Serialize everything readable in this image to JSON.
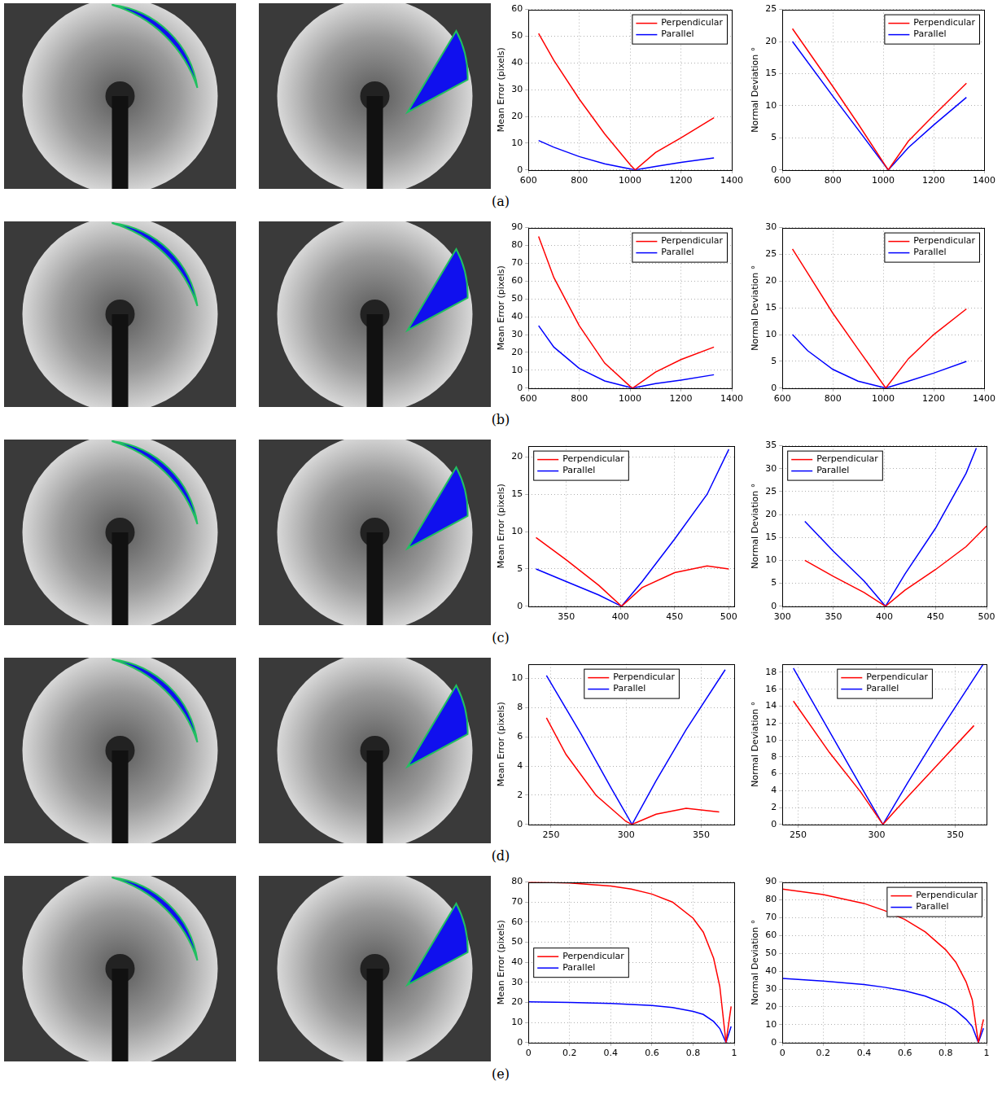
{
  "panel_labels": [
    "(a)",
    "(b)",
    "(c)",
    "(d)",
    "(e)"
  ],
  "chart_data": [
    {
      "type": "line",
      "y_label": "Mean Error (pixels)",
      "xlim": [
        600,
        1400
      ],
      "xticks": [
        600,
        800,
        1000,
        1200,
        1400
      ],
      "ylim": [
        0,
        60
      ],
      "yticks": [
        0,
        10,
        20,
        30,
        40,
        50,
        60
      ],
      "grid": true,
      "legend": "upper right",
      "series": [
        {
          "name": "Perpendicular",
          "color": "#ff0000",
          "x": [
            640,
            700,
            800,
            900,
            1000,
            1020,
            1100,
            1200,
            1330
          ],
          "values": [
            51,
            41,
            26.5,
            13.5,
            2,
            0,
            6.5,
            12,
            19.5
          ]
        },
        {
          "name": "Parallel",
          "color": "#0000ff",
          "x": [
            640,
            700,
            800,
            900,
            1020,
            1100,
            1200,
            1330
          ],
          "values": [
            11,
            8.5,
            5,
            2.3,
            0,
            1.3,
            2.8,
            4.5
          ]
        }
      ]
    },
    {
      "type": "line",
      "y_label": "Normal Deviation °",
      "xlim": [
        600,
        1400
      ],
      "xticks": [
        600,
        800,
        1000,
        1200,
        1400
      ],
      "ylim": [
        0,
        25
      ],
      "yticks": [
        0,
        5,
        10,
        15,
        20,
        25
      ],
      "grid": true,
      "legend": "upper right",
      "series": [
        {
          "name": "Perpendicular",
          "color": "#ff0000",
          "x": [
            640,
            800,
            900,
            1020,
            1100,
            1200,
            1330
          ],
          "values": [
            22,
            13,
            7.2,
            0,
            4.5,
            8.5,
            13.5
          ]
        },
        {
          "name": "Parallel",
          "color": "#0000ff",
          "x": [
            640,
            800,
            900,
            1020,
            1100,
            1200,
            1330
          ],
          "values": [
            20,
            11.5,
            6.3,
            0,
            3.5,
            7,
            11.3
          ]
        }
      ]
    },
    {
      "type": "line",
      "y_label": "Mean Error (pixels)",
      "xlim": [
        600,
        1400
      ],
      "xticks": [
        600,
        800,
        1000,
        1200,
        1400
      ],
      "ylim": [
        0,
        90
      ],
      "yticks": [
        0,
        10,
        20,
        30,
        40,
        50,
        60,
        70,
        80,
        90
      ],
      "grid": true,
      "legend": "upper right",
      "series": [
        {
          "name": "Perpendicular",
          "color": "#ff0000",
          "x": [
            640,
            700,
            800,
            900,
            1000,
            1010,
            1100,
            1200,
            1330
          ],
          "values": [
            85,
            62,
            35,
            14,
            1,
            0,
            9,
            16,
            23
          ]
        },
        {
          "name": "Parallel",
          "color": "#0000ff",
          "x": [
            640,
            700,
            800,
            900,
            1010,
            1100,
            1200,
            1330
          ],
          "values": [
            35,
            23,
            11,
            4,
            0,
            2.5,
            4.5,
            7.5
          ]
        }
      ]
    },
    {
      "type": "line",
      "y_label": "Normal Deviation °",
      "xlim": [
        600,
        1400
      ],
      "xticks": [
        600,
        800,
        1000,
        1200,
        1400
      ],
      "ylim": [
        0,
        30
      ],
      "yticks": [
        0,
        5,
        10,
        15,
        20,
        25,
        30
      ],
      "grid": true,
      "legend": "upper right",
      "series": [
        {
          "name": "Perpendicular",
          "color": "#ff0000",
          "x": [
            640,
            700,
            800,
            900,
            1010,
            1100,
            1200,
            1330
          ],
          "values": [
            26,
            21.5,
            14,
            7.3,
            0,
            5.5,
            10,
            14.8
          ]
        },
        {
          "name": "Parallel",
          "color": "#0000ff",
          "x": [
            640,
            700,
            800,
            900,
            1010,
            1100,
            1200,
            1330
          ],
          "values": [
            10,
            7,
            3.5,
            1.3,
            0,
            1.3,
            2.8,
            5
          ]
        }
      ]
    },
    {
      "type": "line",
      "y_label": "Mean Error (pixels)",
      "xlim": [
        315,
        505
      ],
      "xticks": [
        350,
        400,
        450,
        500
      ],
      "ylim": [
        0,
        21.5
      ],
      "yticks": [
        0,
        5,
        10,
        15,
        20
      ],
      "grid": true,
      "legend": "upper left",
      "series": [
        {
          "name": "Perpendicular",
          "color": "#ff0000",
          "x": [
            322,
            350,
            380,
            401,
            420,
            450,
            480,
            500
          ],
          "values": [
            9.2,
            6.2,
            2.8,
            0,
            2.5,
            4.5,
            5.4,
            5
          ]
        },
        {
          "name": "Parallel",
          "color": "#0000ff",
          "x": [
            322,
            350,
            380,
            401,
            420,
            450,
            480,
            500
          ],
          "values": [
            5,
            3.3,
            1.5,
            0,
            3.3,
            9,
            15,
            21
          ]
        }
      ]
    },
    {
      "type": "line",
      "y_label": "Normal Deviation °",
      "xlim": [
        300,
        500
      ],
      "xticks": [
        300,
        350,
        400,
        450,
        500
      ],
      "ylim": [
        0,
        35
      ],
      "yticks": [
        0,
        5,
        10,
        15,
        20,
        25,
        30,
        35
      ],
      "grid": true,
      "legend": "upper left",
      "series": [
        {
          "name": "Perpendicular",
          "color": "#ff0000",
          "x": [
            322,
            350,
            380,
            401,
            420,
            450,
            480,
            500
          ],
          "values": [
            10,
            6.5,
            3,
            0,
            3.5,
            8,
            13,
            17.5
          ]
        },
        {
          "name": "Parallel",
          "color": "#0000ff",
          "x": [
            322,
            350,
            380,
            401,
            420,
            450,
            480,
            490
          ],
          "values": [
            18.5,
            12,
            5.5,
            0,
            7,
            17,
            29,
            34.5
          ]
        }
      ]
    },
    {
      "type": "line",
      "y_label": "Mean Error (pixels)",
      "xlim": [
        235,
        372
      ],
      "xticks": [
        250,
        300,
        350
      ],
      "ylim": [
        0,
        11
      ],
      "yticks": [
        0,
        2,
        4,
        6,
        8,
        10
      ],
      "grid": true,
      "legend": "upper center",
      "series": [
        {
          "name": "Perpendicular",
          "color": "#ff0000",
          "x": [
            247,
            260,
            280,
            300,
            304,
            320,
            340,
            362
          ],
          "values": [
            7.3,
            4.8,
            2,
            0.2,
            0,
            0.7,
            1.1,
            0.85
          ]
        },
        {
          "name": "Parallel",
          "color": "#0000ff",
          "x": [
            247,
            270,
            290,
            304,
            320,
            340,
            366
          ],
          "values": [
            10.2,
            6.2,
            2.5,
            0,
            3,
            6.5,
            10.6
          ]
        }
      ]
    },
    {
      "type": "line",
      "y_label": "Normal Deviation °",
      "xlim": [
        240,
        370
      ],
      "xticks": [
        250,
        300,
        350
      ],
      "ylim": [
        0,
        19
      ],
      "yticks": [
        0,
        2,
        4,
        6,
        8,
        10,
        12,
        14,
        16,
        18
      ],
      "grid": true,
      "legend": "upper center",
      "series": [
        {
          "name": "Perpendicular",
          "color": "#ff0000",
          "x": [
            247,
            270,
            290,
            304,
            320,
            340,
            362
          ],
          "values": [
            14.6,
            8.5,
            3.8,
            0,
            3.3,
            7.3,
            11.7
          ]
        },
        {
          "name": "Parallel",
          "color": "#0000ff",
          "x": [
            247,
            270,
            290,
            304,
            320,
            340,
            368
          ],
          "values": [
            18.5,
            11,
            4.5,
            0,
            5,
            11,
            19
          ]
        }
      ]
    },
    {
      "type": "line",
      "y_label": "Mean Error (pixels)",
      "xlim": [
        0,
        1
      ],
      "xticks": [
        0,
        0.2,
        0.4,
        0.6,
        0.8,
        1
      ],
      "ylim": [
        0,
        80
      ],
      "yticks": [
        0,
        10,
        20,
        30,
        40,
        50,
        60,
        70,
        80
      ],
      "grid": true,
      "legend": "center left",
      "series": [
        {
          "name": "Perpendicular",
          "color": "#ff0000",
          "x": [
            0,
            0.2,
            0.4,
            0.5,
            0.6,
            0.7,
            0.8,
            0.85,
            0.9,
            0.93,
            0.96,
            0.985
          ],
          "values": [
            80,
            79.5,
            78,
            76.5,
            74,
            70,
            62,
            55,
            42,
            28,
            0,
            18
          ]
        },
        {
          "name": "Parallel",
          "color": "#0000ff",
          "x": [
            0,
            0.2,
            0.4,
            0.5,
            0.6,
            0.7,
            0.8,
            0.85,
            0.9,
            0.93,
            0.96,
            0.985
          ],
          "values": [
            20.3,
            20,
            19.5,
            19,
            18.5,
            17.5,
            15.5,
            14,
            10.5,
            7,
            0,
            8
          ]
        }
      ]
    },
    {
      "type": "line",
      "y_label": "Normal Deviation °",
      "xlim": [
        0,
        1
      ],
      "xticks": [
        0,
        0.2,
        0.4,
        0.6,
        0.8,
        1
      ],
      "ylim": [
        0,
        90
      ],
      "yticks": [
        0,
        10,
        20,
        30,
        40,
        50,
        60,
        70,
        80,
        90
      ],
      "grid": true,
      "legend": "upper right",
      "series": [
        {
          "name": "Perpendicular",
          "color": "#ff0000",
          "x": [
            0,
            0.2,
            0.4,
            0.5,
            0.6,
            0.7,
            0.8,
            0.85,
            0.9,
            0.93,
            0.96,
            0.985
          ],
          "values": [
            86,
            83,
            78,
            74,
            69,
            62,
            52,
            45,
            34,
            24,
            0,
            13
          ]
        },
        {
          "name": "Parallel",
          "color": "#0000ff",
          "x": [
            0,
            0.2,
            0.4,
            0.5,
            0.6,
            0.7,
            0.8,
            0.85,
            0.9,
            0.93,
            0.96,
            0.985
          ],
          "values": [
            36,
            34.5,
            32.5,
            31,
            29,
            26,
            21.5,
            18,
            13,
            9,
            0,
            8
          ]
        }
      ]
    }
  ]
}
